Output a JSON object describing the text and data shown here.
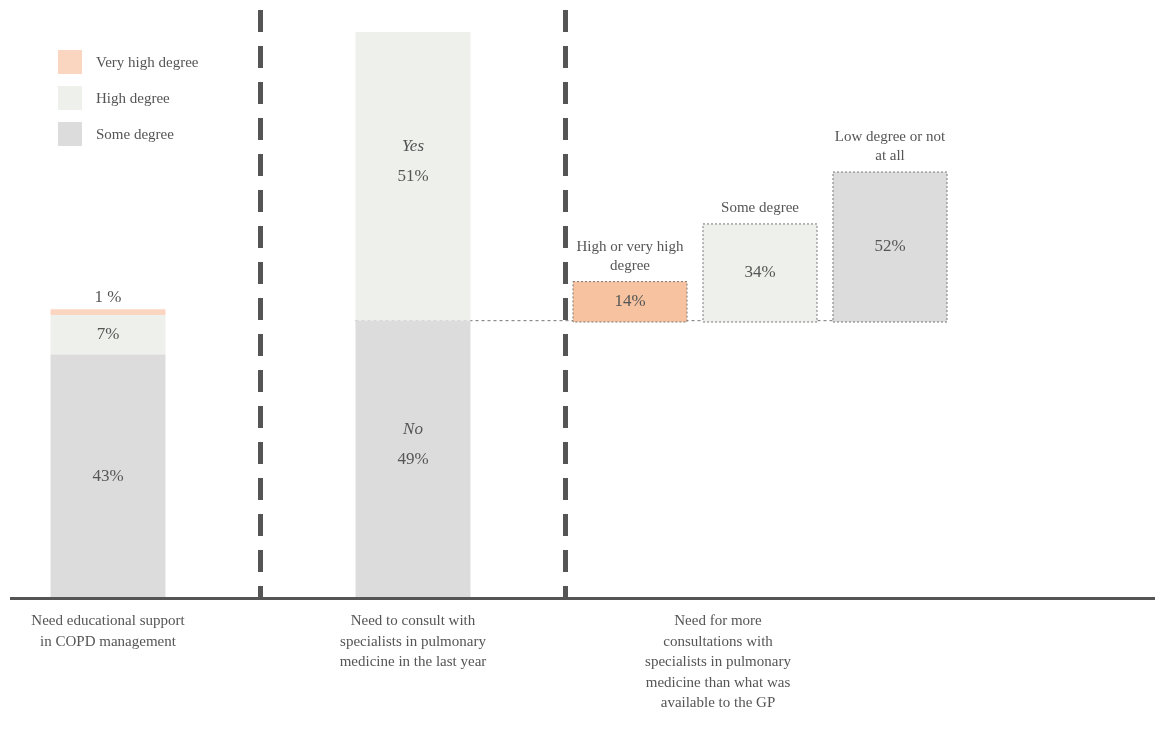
{
  "chart_data": [
    {
      "type": "bar",
      "stacked": true,
      "legend": "top left",
      "tick_labels": "x",
      "categories": [
        "Need educational support in COPD management",
        "Need to consult with specialists in pulmonary medicine in the last year",
        "Need for more consultations with specialists in pulmonary medicine than what was available to the GP"
      ],
      "ylim": [
        0,
        100
      ],
      "series": [
        {
          "name": "Some degree",
          "color": "#dcdcdc",
          "values": [
            43,
            null,
            null
          ],
          "value_labels": [
            "43%",
            null,
            null
          ]
        },
        {
          "name": "High degree",
          "color": "#eef0eb",
          "values": [
            7,
            null,
            null
          ],
          "value_labels": [
            "7%",
            null,
            null
          ]
        },
        {
          "name": "Very high degree",
          "color": "#fad6c0",
          "values": [
            1,
            null,
            null
          ],
          "value_labels": [
            "1 %",
            null,
            null
          ]
        },
        {
          "color": "#dcdcdc",
          "values": [
            null,
            49,
            null
          ],
          "value_labels": [
            null,
            "49%",
            null
          ]
        },
        {
          "color": "#eef0eb",
          "values": [
            null,
            51,
            null
          ],
          "value_labels": [
            null,
            "51%",
            null
          ]
        }
      ],
      "annotations": [
        "No",
        "Yes"
      ],
      "ref_lines": [
        {
          "axis": "y",
          "value": 49,
          "color": "#777777",
          "line_style": "dotted"
        }
      ]
    },
    {
      "type": "bar",
      "tick_labels": false,
      "categories": [
        null,
        null,
        null
      ],
      "annotations": [
        "High or very high degree",
        "Some degree",
        "Low degree or not at all"
      ],
      "values": [
        14,
        34,
        52
      ],
      "colors": [
        "#f6c29f",
        "#eef0eb",
        "#dcdcdc"
      ],
      "value_labels": [
        "14%",
        "34%",
        "52%"
      ]
    }
  ]
}
